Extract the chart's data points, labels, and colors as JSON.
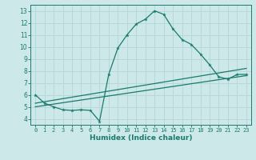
{
  "title": "",
  "xlabel": "Humidex (Indice chaleur)",
  "xlim": [
    -0.5,
    23.5
  ],
  "ylim": [
    3.5,
    13.5
  ],
  "xticks": [
    0,
    1,
    2,
    3,
    4,
    5,
    6,
    7,
    8,
    9,
    10,
    11,
    12,
    13,
    14,
    15,
    16,
    17,
    18,
    19,
    20,
    21,
    22,
    23
  ],
  "yticks": [
    4,
    5,
    6,
    7,
    8,
    9,
    10,
    11,
    12,
    13
  ],
  "bg_color": "#cce8e8",
  "line_color": "#1a7a6e",
  "grid_color": "#b8d8d8",
  "line1_x": [
    0,
    1,
    2,
    3,
    4,
    5,
    6,
    7,
    8,
    9,
    10,
    11,
    12,
    13,
    14,
    15,
    16,
    17,
    18,
    19,
    20,
    21,
    22,
    23
  ],
  "line1_y": [
    6.0,
    5.3,
    5.0,
    4.75,
    4.7,
    4.75,
    4.7,
    3.8,
    7.7,
    9.9,
    11.0,
    11.9,
    12.3,
    13.0,
    12.7,
    11.5,
    10.6,
    10.2,
    9.4,
    8.5,
    7.5,
    7.3,
    7.7,
    7.7
  ],
  "line2_x": [
    0,
    23
  ],
  "line2_y": [
    5.0,
    7.6
  ],
  "line3_x": [
    0,
    23
  ],
  "line3_y": [
    5.3,
    8.2
  ]
}
